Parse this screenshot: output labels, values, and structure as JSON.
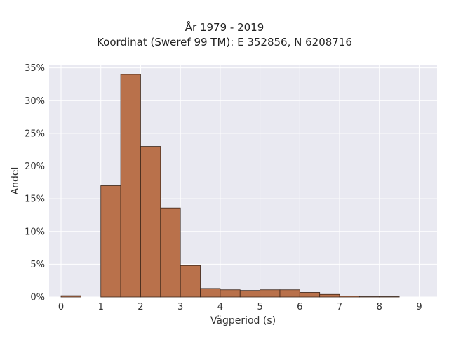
{
  "chart_data": {
    "type": "bar",
    "title_lines": [
      "År 1979 - 2019",
      "Koordinat (Sweref 99 TM): E 352856, N 6208716"
    ],
    "xlabel": "Vågperiod (s)",
    "ylabel": "Andel",
    "x_ticks": [
      0,
      1,
      2,
      3,
      4,
      5,
      6,
      7,
      8,
      9
    ],
    "y_ticks": [
      "0%",
      "5%",
      "10%",
      "15%",
      "20%",
      "25%",
      "30%",
      "35%"
    ],
    "xlim": [
      -0.3,
      9.45
    ],
    "ylim": [
      0,
      35.5
    ],
    "bin_width": 0.5,
    "bins": [
      {
        "start": 0.0,
        "value": 0.2
      },
      {
        "start": 0.5,
        "value": 0.0
      },
      {
        "start": 1.0,
        "value": 17.0
      },
      {
        "start": 1.5,
        "value": 34.0
      },
      {
        "start": 2.0,
        "value": 23.0
      },
      {
        "start": 2.5,
        "value": 13.6
      },
      {
        "start": 3.0,
        "value": 4.8
      },
      {
        "start": 3.5,
        "value": 1.3
      },
      {
        "start": 4.0,
        "value": 1.1
      },
      {
        "start": 4.5,
        "value": 1.0
      },
      {
        "start": 5.0,
        "value": 1.1
      },
      {
        "start": 5.5,
        "value": 1.1
      },
      {
        "start": 6.0,
        "value": 0.7
      },
      {
        "start": 6.5,
        "value": 0.4
      },
      {
        "start": 7.0,
        "value": 0.15
      },
      {
        "start": 7.5,
        "value": 0.05
      },
      {
        "start": 8.0,
        "value": 0.05
      }
    ],
    "grid": true,
    "bar_color": "#b9714b",
    "bar_edge_color": "#3a2418",
    "plot_bg": "#e9e9f1",
    "grid_color": "#ffffff"
  }
}
